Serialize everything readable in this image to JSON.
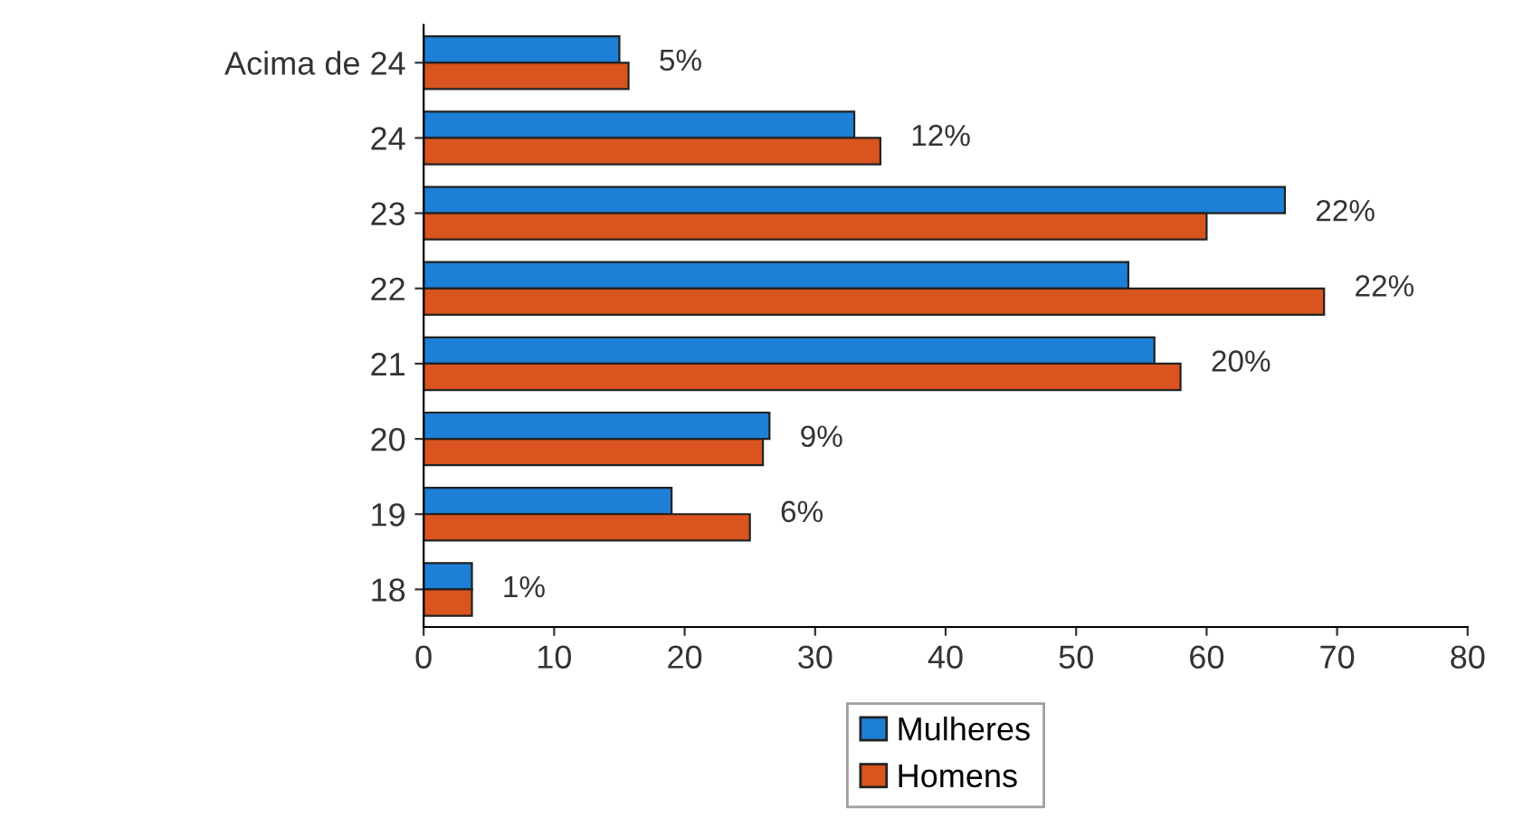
{
  "chart_data": {
    "type": "bar",
    "orientation": "horizontal",
    "categories": [
      "Acima de 24",
      "24",
      "23",
      "22",
      "21",
      "20",
      "19",
      "18"
    ],
    "series": [
      {
        "name": "Mulheres",
        "color": "#1e7fd6",
        "values": [
          15,
          33,
          66,
          54,
          56,
          26.5,
          19,
          3.7
        ]
      },
      {
        "name": "Homens",
        "color": "#d9541e",
        "values": [
          15.7,
          35,
          60,
          69,
          58,
          26,
          25,
          3.7
        ]
      }
    ],
    "annotations": [
      {
        "text": "5%",
        "x": 15.7,
        "y": "Acima de 24"
      },
      {
        "text": "12%",
        "x": 35,
        "y": "24"
      },
      {
        "text": "22%",
        "x": 66,
        "y": "23"
      },
      {
        "text": "22%",
        "x": 69,
        "y": "22"
      },
      {
        "text": "20%",
        "x": 58,
        "y": "21"
      },
      {
        "text": "9%",
        "x": 26.5,
        "y": "20"
      },
      {
        "text": "6%",
        "x": 25,
        "y": "19"
      },
      {
        "text": "1%",
        "x": 3.7,
        "y": "18"
      }
    ],
    "xlim": [
      0,
      80
    ],
    "xticks": [
      0,
      10,
      20,
      30,
      40,
      50,
      60,
      70,
      80
    ],
    "grid": false,
    "legend": "bottom"
  }
}
